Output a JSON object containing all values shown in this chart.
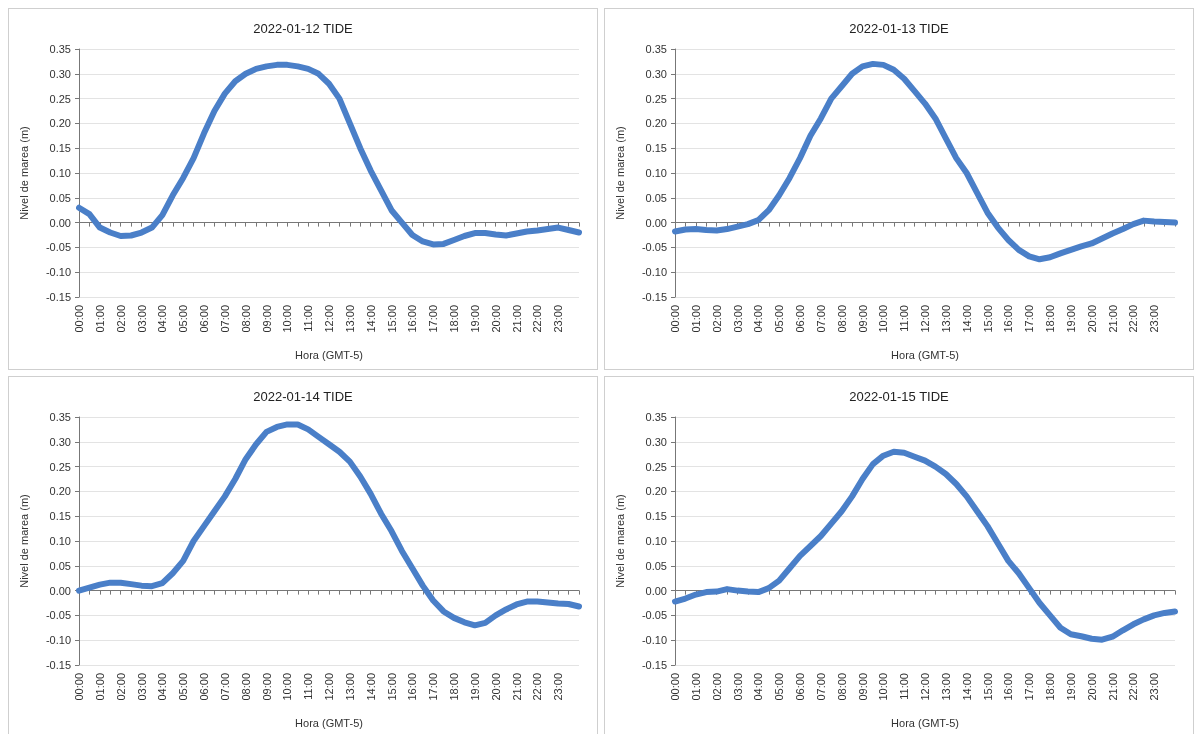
{
  "chart_data": [
    {
      "type": "line",
      "title": "2022-01-12 TIDE",
      "xlabel": "Hora (GMT-5)",
      "ylabel": "Nivel de marea (m)",
      "grid": "y",
      "line_style": "solid",
      "xlim": [
        0,
        24
      ],
      "ylim": [
        -0.15,
        0.35
      ],
      "xticks": [
        {
          "value": 0,
          "label": "00:00"
        },
        {
          "value": 0.5,
          "label": null
        },
        {
          "value": 1,
          "label": "01:00"
        },
        {
          "value": 1.5,
          "label": null
        },
        {
          "value": 2,
          "label": "02:00"
        },
        {
          "value": 2.5,
          "label": null
        },
        {
          "value": 3,
          "label": "03:00"
        },
        {
          "value": 3.5,
          "label": null
        },
        {
          "value": 4,
          "label": "04:00"
        },
        {
          "value": 4.5,
          "label": null
        },
        {
          "value": 5,
          "label": "05:00"
        },
        {
          "value": 5.5,
          "label": null
        },
        {
          "value": 6,
          "label": "06:00"
        },
        {
          "value": 6.5,
          "label": null
        },
        {
          "value": 7,
          "label": "07:00"
        },
        {
          "value": 7.5,
          "label": null
        },
        {
          "value": 8,
          "label": "08:00"
        },
        {
          "value": 8.5,
          "label": null
        },
        {
          "value": 9,
          "label": "09:00"
        },
        {
          "value": 9.5,
          "label": null
        },
        {
          "value": 10,
          "label": "10:00"
        },
        {
          "value": 10.5,
          "label": null
        },
        {
          "value": 11,
          "label": "11:00"
        },
        {
          "value": 11.5,
          "label": null
        },
        {
          "value": 12,
          "label": "12:00"
        },
        {
          "value": 12.5,
          "label": null
        },
        {
          "value": 13,
          "label": "13:00"
        },
        {
          "value": 13.5,
          "label": null
        },
        {
          "value": 14,
          "label": "14:00"
        },
        {
          "value": 14.5,
          "label": null
        },
        {
          "value": 15,
          "label": "15:00"
        },
        {
          "value": 15.5,
          "label": null
        },
        {
          "value": 16,
          "label": "16:00"
        },
        {
          "value": 16.5,
          "label": null
        },
        {
          "value": 17,
          "label": "17:00"
        },
        {
          "value": 17.5,
          "label": null
        },
        {
          "value": 18,
          "label": "18:00"
        },
        {
          "value": 18.5,
          "label": null
        },
        {
          "value": 19,
          "label": "19:00"
        },
        {
          "value": 19.5,
          "label": null
        },
        {
          "value": 20,
          "label": "20:00"
        },
        {
          "value": 20.5,
          "label": null
        },
        {
          "value": 21,
          "label": "21:00"
        },
        {
          "value": 21.5,
          "label": null
        },
        {
          "value": 22,
          "label": "22:00"
        },
        {
          "value": 22.5,
          "label": null
        },
        {
          "value": 23,
          "label": "23:00"
        },
        {
          "value": 23.5,
          "label": null
        },
        {
          "value": 24,
          "label": null
        }
      ],
      "yticks": [
        {
          "value": -0.15,
          "label": "-0.15"
        },
        {
          "value": -0.1,
          "label": "-0.10"
        },
        {
          "value": -0.05,
          "label": "-0.05"
        },
        {
          "value": 0,
          "label": "0.00"
        },
        {
          "value": 0.05,
          "label": "0.05"
        },
        {
          "value": 0.1,
          "label": "0.10"
        },
        {
          "value": 0.15,
          "label": "0.15"
        },
        {
          "value": 0.2,
          "label": "0.20"
        },
        {
          "value": 0.25,
          "label": "0.25"
        },
        {
          "value": 0.3,
          "label": "0.30"
        },
        {
          "value": 0.35,
          "label": "0.35"
        }
      ],
      "x": [
        0,
        0.5,
        1,
        1.5,
        2,
        2.5,
        3,
        3.5,
        4,
        4.5,
        5,
        5.5,
        6,
        6.5,
        7,
        7.5,
        8,
        8.5,
        9,
        9.5,
        10,
        10.5,
        11,
        11.5,
        12,
        12.5,
        13,
        13.5,
        14,
        14.5,
        15,
        15.5,
        16,
        16.5,
        17,
        17.5,
        18,
        18.5,
        19,
        19.5,
        20,
        20.5,
        21,
        21.5,
        22,
        22.5,
        23,
        23.5,
        24
      ],
      "series": [
        {
          "color": "#4a7fc8",
          "values": [
            0.03,
            0.017,
            -0.01,
            -0.02,
            -0.027,
            -0.026,
            -0.02,
            -0.01,
            0.015,
            0.055,
            0.09,
            0.13,
            0.18,
            0.225,
            0.26,
            0.285,
            0.3,
            0.31,
            0.315,
            0.318,
            0.318,
            0.315,
            0.31,
            0.3,
            0.28,
            0.25,
            0.2,
            0.15,
            0.105,
            0.065,
            0.025,
            0.0,
            -0.025,
            -0.038,
            -0.044,
            -0.043,
            -0.035,
            -0.027,
            -0.021,
            -0.021,
            -0.024,
            -0.026,
            -0.022,
            -0.018,
            -0.016,
            -0.013,
            -0.01,
            -0.015,
            -0.02
          ]
        }
      ]
    },
    {
      "type": "line",
      "title": "2022-01-13 TIDE",
      "xlabel": "Hora (GMT-5)",
      "ylabel": "Nivel de marea (m)",
      "grid": "y",
      "line_style": "solid",
      "xlim": [
        0,
        24
      ],
      "ylim": [
        -0.15,
        0.35
      ],
      "xticks": [
        {
          "value": 0,
          "label": "00:00"
        },
        {
          "value": 0.5,
          "label": null
        },
        {
          "value": 1,
          "label": "01:00"
        },
        {
          "value": 1.5,
          "label": null
        },
        {
          "value": 2,
          "label": "02:00"
        },
        {
          "value": 2.5,
          "label": null
        },
        {
          "value": 3,
          "label": "03:00"
        },
        {
          "value": 3.5,
          "label": null
        },
        {
          "value": 4,
          "label": "04:00"
        },
        {
          "value": 4.5,
          "label": null
        },
        {
          "value": 5,
          "label": "05:00"
        },
        {
          "value": 5.5,
          "label": null
        },
        {
          "value": 6,
          "label": "06:00"
        },
        {
          "value": 6.5,
          "label": null
        },
        {
          "value": 7,
          "label": "07:00"
        },
        {
          "value": 7.5,
          "label": null
        },
        {
          "value": 8,
          "label": "08:00"
        },
        {
          "value": 8.5,
          "label": null
        },
        {
          "value": 9,
          "label": "09:00"
        },
        {
          "value": 9.5,
          "label": null
        },
        {
          "value": 10,
          "label": "10:00"
        },
        {
          "value": 10.5,
          "label": null
        },
        {
          "value": 11,
          "label": "11:00"
        },
        {
          "value": 11.5,
          "label": null
        },
        {
          "value": 12,
          "label": "12:00"
        },
        {
          "value": 12.5,
          "label": null
        },
        {
          "value": 13,
          "label": "13:00"
        },
        {
          "value": 13.5,
          "label": null
        },
        {
          "value": 14,
          "label": "14:00"
        },
        {
          "value": 14.5,
          "label": null
        },
        {
          "value": 15,
          "label": "15:00"
        },
        {
          "value": 15.5,
          "label": null
        },
        {
          "value": 16,
          "label": "16:00"
        },
        {
          "value": 16.5,
          "label": null
        },
        {
          "value": 17,
          "label": "17:00"
        },
        {
          "value": 17.5,
          "label": null
        },
        {
          "value": 18,
          "label": "18:00"
        },
        {
          "value": 18.5,
          "label": null
        },
        {
          "value": 19,
          "label": "19:00"
        },
        {
          "value": 19.5,
          "label": null
        },
        {
          "value": 20,
          "label": "20:00"
        },
        {
          "value": 20.5,
          "label": null
        },
        {
          "value": 21,
          "label": "21:00"
        },
        {
          "value": 21.5,
          "label": null
        },
        {
          "value": 22,
          "label": "22:00"
        },
        {
          "value": 22.5,
          "label": null
        },
        {
          "value": 23,
          "label": "23:00"
        },
        {
          "value": 23.5,
          "label": null
        },
        {
          "value": 24,
          "label": null
        }
      ],
      "yticks": [
        {
          "value": -0.15,
          "label": "-0.15"
        },
        {
          "value": -0.1,
          "label": "-0.10"
        },
        {
          "value": -0.05,
          "label": "-0.05"
        },
        {
          "value": 0,
          "label": "0.00"
        },
        {
          "value": 0.05,
          "label": "0.05"
        },
        {
          "value": 0.1,
          "label": "0.10"
        },
        {
          "value": 0.15,
          "label": "0.15"
        },
        {
          "value": 0.2,
          "label": "0.20"
        },
        {
          "value": 0.25,
          "label": "0.25"
        },
        {
          "value": 0.3,
          "label": "0.30"
        },
        {
          "value": 0.35,
          "label": "0.35"
        }
      ],
      "x": [
        0,
        0.5,
        1,
        1.5,
        2,
        2.5,
        3,
        3.5,
        4,
        4.5,
        5,
        5.5,
        6,
        6.5,
        7,
        7.5,
        8,
        8.5,
        9,
        9.5,
        10,
        10.5,
        11,
        11.5,
        12,
        12.5,
        13,
        13.5,
        14,
        14.5,
        15,
        15.5,
        16,
        16.5,
        17,
        17.5,
        18,
        18.5,
        19,
        19.5,
        20,
        20.5,
        21,
        21.5,
        22,
        22.5,
        23,
        23.5,
        24
      ],
      "series": [
        {
          "color": "#4a7fc8",
          "values": [
            -0.018,
            -0.014,
            -0.013,
            -0.015,
            -0.016,
            -0.013,
            -0.008,
            -0.003,
            0.005,
            0.025,
            0.055,
            0.09,
            0.13,
            0.175,
            0.21,
            0.25,
            0.275,
            0.3,
            0.315,
            0.32,
            0.318,
            0.308,
            0.29,
            0.265,
            0.24,
            0.21,
            0.17,
            0.13,
            0.1,
            0.06,
            0.02,
            -0.01,
            -0.035,
            -0.055,
            -0.068,
            -0.074,
            -0.07,
            -0.062,
            -0.055,
            -0.048,
            -0.042,
            -0.032,
            -0.022,
            -0.013,
            -0.003,
            0.004,
            0.002,
            0.001,
            0.0
          ]
        }
      ]
    },
    {
      "type": "line",
      "title": "2022-01-14 TIDE",
      "xlabel": "Hora (GMT-5)",
      "ylabel": "Nivel de marea (m)",
      "grid": "y",
      "line_style": "solid",
      "xlim": [
        0,
        24
      ],
      "ylim": [
        -0.15,
        0.35
      ],
      "xticks": [
        {
          "value": 0,
          "label": "00:00"
        },
        {
          "value": 0.5,
          "label": null
        },
        {
          "value": 1,
          "label": "01:00"
        },
        {
          "value": 1.5,
          "label": null
        },
        {
          "value": 2,
          "label": "02:00"
        },
        {
          "value": 2.5,
          "label": null
        },
        {
          "value": 3,
          "label": "03:00"
        },
        {
          "value": 3.5,
          "label": null
        },
        {
          "value": 4,
          "label": "04:00"
        },
        {
          "value": 4.5,
          "label": null
        },
        {
          "value": 5,
          "label": "05:00"
        },
        {
          "value": 5.5,
          "label": null
        },
        {
          "value": 6,
          "label": "06:00"
        },
        {
          "value": 6.5,
          "label": null
        },
        {
          "value": 7,
          "label": "07:00"
        },
        {
          "value": 7.5,
          "label": null
        },
        {
          "value": 8,
          "label": "08:00"
        },
        {
          "value": 8.5,
          "label": null
        },
        {
          "value": 9,
          "label": "09:00"
        },
        {
          "value": 9.5,
          "label": null
        },
        {
          "value": 10,
          "label": "10:00"
        },
        {
          "value": 10.5,
          "label": null
        },
        {
          "value": 11,
          "label": "11:00"
        },
        {
          "value": 11.5,
          "label": null
        },
        {
          "value": 12,
          "label": "12:00"
        },
        {
          "value": 12.5,
          "label": null
        },
        {
          "value": 13,
          "label": "13:00"
        },
        {
          "value": 13.5,
          "label": null
        },
        {
          "value": 14,
          "label": "14:00"
        },
        {
          "value": 14.5,
          "label": null
        },
        {
          "value": 15,
          "label": "15:00"
        },
        {
          "value": 15.5,
          "label": null
        },
        {
          "value": 16,
          "label": "16:00"
        },
        {
          "value": 16.5,
          "label": null
        },
        {
          "value": 17,
          "label": "17:00"
        },
        {
          "value": 17.5,
          "label": null
        },
        {
          "value": 18,
          "label": "18:00"
        },
        {
          "value": 18.5,
          "label": null
        },
        {
          "value": 19,
          "label": "19:00"
        },
        {
          "value": 19.5,
          "label": null
        },
        {
          "value": 20,
          "label": "20:00"
        },
        {
          "value": 20.5,
          "label": null
        },
        {
          "value": 21,
          "label": "21:00"
        },
        {
          "value": 21.5,
          "label": null
        },
        {
          "value": 22,
          "label": "22:00"
        },
        {
          "value": 22.5,
          "label": null
        },
        {
          "value": 23,
          "label": "23:00"
        },
        {
          "value": 23.5,
          "label": null
        },
        {
          "value": 24,
          "label": null
        }
      ],
      "yticks": [
        {
          "value": -0.15,
          "label": "-0.15"
        },
        {
          "value": -0.1,
          "label": "-0.10"
        },
        {
          "value": -0.05,
          "label": "-0.05"
        },
        {
          "value": 0,
          "label": "0.00"
        },
        {
          "value": 0.05,
          "label": "0.05"
        },
        {
          "value": 0.1,
          "label": "0.10"
        },
        {
          "value": 0.15,
          "label": "0.15"
        },
        {
          "value": 0.2,
          "label": "0.20"
        },
        {
          "value": 0.25,
          "label": "0.25"
        },
        {
          "value": 0.3,
          "label": "0.30"
        },
        {
          "value": 0.35,
          "label": "0.35"
        }
      ],
      "x": [
        0,
        0.5,
        1,
        1.5,
        2,
        2.5,
        3,
        3.5,
        4,
        4.5,
        5,
        5.5,
        6,
        6.5,
        7,
        7.5,
        8,
        8.5,
        9,
        9.5,
        10,
        10.5,
        11,
        11.5,
        12,
        12.5,
        13,
        13.5,
        14,
        14.5,
        15,
        15.5,
        16,
        16.5,
        17,
        17.5,
        18,
        18.5,
        19,
        19.5,
        20,
        20.5,
        21,
        21.5,
        22,
        22.5,
        23,
        23.5,
        24
      ],
      "series": [
        {
          "color": "#4a7fc8",
          "values": [
            0.0,
            0.006,
            0.012,
            0.016,
            0.016,
            0.013,
            0.01,
            0.009,
            0.015,
            0.035,
            0.06,
            0.1,
            0.13,
            0.16,
            0.19,
            0.225,
            0.265,
            0.295,
            0.32,
            0.33,
            0.335,
            0.335,
            0.325,
            0.31,
            0.295,
            0.28,
            0.26,
            0.23,
            0.195,
            0.155,
            0.12,
            0.08,
            0.045,
            0.01,
            -0.02,
            -0.042,
            -0.055,
            -0.064,
            -0.07,
            -0.065,
            -0.05,
            -0.038,
            -0.028,
            -0.022,
            -0.022,
            -0.024,
            -0.026,
            -0.027,
            -0.032
          ]
        }
      ]
    },
    {
      "type": "line",
      "title": "2022-01-15 TIDE",
      "xlabel": "Hora (GMT-5)",
      "ylabel": "Nivel de marea (m)",
      "grid": "y",
      "line_style": "solid",
      "xlim": [
        0,
        24
      ],
      "ylim": [
        -0.15,
        0.35
      ],
      "xticks": [
        {
          "value": 0,
          "label": "00:00"
        },
        {
          "value": 0.5,
          "label": null
        },
        {
          "value": 1,
          "label": "01:00"
        },
        {
          "value": 1.5,
          "label": null
        },
        {
          "value": 2,
          "label": "02:00"
        },
        {
          "value": 2.5,
          "label": null
        },
        {
          "value": 3,
          "label": "03:00"
        },
        {
          "value": 3.5,
          "label": null
        },
        {
          "value": 4,
          "label": "04:00"
        },
        {
          "value": 4.5,
          "label": null
        },
        {
          "value": 5,
          "label": "05:00"
        },
        {
          "value": 5.5,
          "label": null
        },
        {
          "value": 6,
          "label": "06:00"
        },
        {
          "value": 6.5,
          "label": null
        },
        {
          "value": 7,
          "label": "07:00"
        },
        {
          "value": 7.5,
          "label": null
        },
        {
          "value": 8,
          "label": "08:00"
        },
        {
          "value": 8.5,
          "label": null
        },
        {
          "value": 9,
          "label": "09:00"
        },
        {
          "value": 9.5,
          "label": null
        },
        {
          "value": 10,
          "label": "10:00"
        },
        {
          "value": 10.5,
          "label": null
        },
        {
          "value": 11,
          "label": "11:00"
        },
        {
          "value": 11.5,
          "label": null
        },
        {
          "value": 12,
          "label": "12:00"
        },
        {
          "value": 12.5,
          "label": null
        },
        {
          "value": 13,
          "label": "13:00"
        },
        {
          "value": 13.5,
          "label": null
        },
        {
          "value": 14,
          "label": "14:00"
        },
        {
          "value": 14.5,
          "label": null
        },
        {
          "value": 15,
          "label": "15:00"
        },
        {
          "value": 15.5,
          "label": null
        },
        {
          "value": 16,
          "label": "16:00"
        },
        {
          "value": 16.5,
          "label": null
        },
        {
          "value": 17,
          "label": "17:00"
        },
        {
          "value": 17.5,
          "label": null
        },
        {
          "value": 18,
          "label": "18:00"
        },
        {
          "value": 18.5,
          "label": null
        },
        {
          "value": 19,
          "label": "19:00"
        },
        {
          "value": 19.5,
          "label": null
        },
        {
          "value": 20,
          "label": "20:00"
        },
        {
          "value": 20.5,
          "label": null
        },
        {
          "value": 21,
          "label": "21:00"
        },
        {
          "value": 21.5,
          "label": null
        },
        {
          "value": 22,
          "label": "22:00"
        },
        {
          "value": 22.5,
          "label": null
        },
        {
          "value": 23,
          "label": "23:00"
        },
        {
          "value": 23.5,
          "label": null
        },
        {
          "value": 24,
          "label": null
        }
      ],
      "yticks": [
        {
          "value": -0.15,
          "label": "-0.15"
        },
        {
          "value": -0.1,
          "label": "-0.10"
        },
        {
          "value": -0.05,
          "label": "-0.05"
        },
        {
          "value": 0,
          "label": "0.00"
        },
        {
          "value": 0.05,
          "label": "0.05"
        },
        {
          "value": 0.1,
          "label": "0.10"
        },
        {
          "value": 0.15,
          "label": "0.15"
        },
        {
          "value": 0.2,
          "label": "0.20"
        },
        {
          "value": 0.25,
          "label": "0.25"
        },
        {
          "value": 0.3,
          "label": "0.30"
        },
        {
          "value": 0.35,
          "label": "0.35"
        }
      ],
      "x": [
        0,
        0.5,
        1,
        1.5,
        2,
        2.5,
        3,
        3.5,
        4,
        4.5,
        5,
        5.5,
        6,
        6.5,
        7,
        7.5,
        8,
        8.5,
        9,
        9.5,
        10,
        10.5,
        11,
        11.5,
        12,
        12.5,
        13,
        13.5,
        14,
        14.5,
        15,
        15.5,
        16,
        16.5,
        17,
        17.5,
        18,
        18.5,
        19,
        19.5,
        20,
        20.5,
        21,
        21.5,
        22,
        22.5,
        23,
        23.5,
        24
      ],
      "series": [
        {
          "color": "#4a7fc8",
          "values": [
            -0.022,
            -0.016,
            -0.008,
            -0.003,
            -0.002,
            0.003,
            0.0,
            -0.002,
            -0.003,
            0.005,
            0.02,
            0.045,
            0.07,
            0.09,
            0.11,
            0.135,
            0.16,
            0.19,
            0.225,
            0.255,
            0.272,
            0.28,
            0.278,
            0.27,
            0.262,
            0.25,
            0.235,
            0.215,
            0.19,
            0.16,
            0.13,
            0.095,
            0.06,
            0.035,
            0.005,
            -0.025,
            -0.05,
            -0.075,
            -0.088,
            -0.092,
            -0.097,
            -0.099,
            -0.093,
            -0.08,
            -0.068,
            -0.058,
            -0.05,
            -0.045,
            -0.042
          ]
        }
      ]
    }
  ]
}
